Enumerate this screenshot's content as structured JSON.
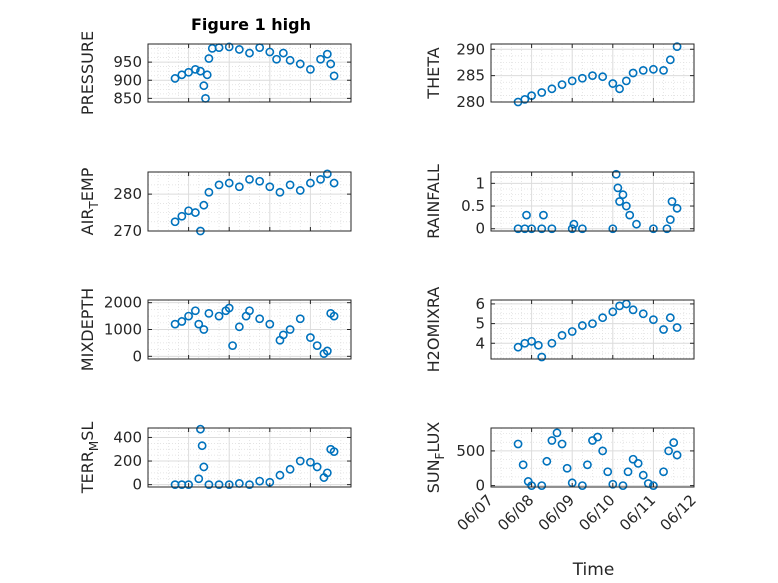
{
  "figure": {
    "title": "Figure 1 high"
  },
  "chart_data": [
    {
      "type": "scatter",
      "ylabel": "PRESSURE",
      "ylim": [
        840,
        1000
      ],
      "yticks": [
        "850",
        "900",
        "950"
      ],
      "x": [
        "06/07 16:00",
        "06/07 20:00",
        "06/08 00:00",
        "06/08 04:00",
        "06/08 07:00",
        "06/08 09:00",
        "06/08 10:00",
        "06/08 11:00",
        "06/08 12:00",
        "06/08 14:00",
        "06/08 18:00",
        "06/09 00:00",
        "06/09 06:00",
        "06/09 12:00",
        "06/09 18:00",
        "06/10 00:00",
        "06/10 04:00",
        "06/10 08:00",
        "06/10 12:00",
        "06/10 18:00",
        "06/11 00:00",
        "06/11 06:00",
        "06/11 10:00",
        "06/11 12:00",
        "06/11 14:00"
      ],
      "y": [
        905,
        915,
        922,
        930,
        925,
        885,
        850,
        915,
        960,
        988,
        990,
        992,
        985,
        975,
        990,
        978,
        958,
        975,
        955,
        945,
        930,
        958,
        972,
        945,
        912
      ]
    },
    {
      "type": "scatter",
      "ylabel": "THETA",
      "ylim": [
        280,
        291
      ],
      "yticks": [
        "280",
        "285",
        "290"
      ],
      "x": [
        "06/07 16:00",
        "06/07 20:00",
        "06/08 00:00",
        "06/08 06:00",
        "06/08 12:00",
        "06/08 18:00",
        "06/09 00:00",
        "06/09 06:00",
        "06/09 12:00",
        "06/09 18:00",
        "06/10 00:00",
        "06/10 04:00",
        "06/10 08:00",
        "06/10 12:00",
        "06/10 18:00",
        "06/11 00:00",
        "06/11 06:00",
        "06/11 10:00",
        "06/11 14:00"
      ],
      "y": [
        280.0,
        280.5,
        281.2,
        281.8,
        282.5,
        283.3,
        284.0,
        284.5,
        285.0,
        284.8,
        283.5,
        282.5,
        284.0,
        285.5,
        286.0,
        286.2,
        286.0,
        288.0,
        290.5
      ]
    },
    {
      "type": "scatter",
      "ylabel": "AIR_TEMP",
      "ylim": [
        270,
        286
      ],
      "yticks": [
        "270",
        "280"
      ],
      "x": [
        "06/07 16:00",
        "06/07 20:00",
        "06/08 00:00",
        "06/08 04:00",
        "06/08 07:00",
        "06/08 09:00",
        "06/08 12:00",
        "06/08 18:00",
        "06/09 00:00",
        "06/09 06:00",
        "06/09 12:00",
        "06/09 18:00",
        "06/10 00:00",
        "06/10 06:00",
        "06/10 12:00",
        "06/10 18:00",
        "06/11 00:00",
        "06/11 06:00",
        "06/11 10:00",
        "06/11 14:00"
      ],
      "y": [
        272.5,
        274.0,
        275.5,
        275.0,
        270.0,
        277.0,
        280.5,
        282.5,
        283.0,
        282.0,
        284.0,
        283.5,
        282.0,
        280.5,
        282.5,
        281.0,
        283.0,
        284.0,
        285.5,
        283.0
      ]
    },
    {
      "type": "scatter",
      "ylabel": "RAINFALL",
      "ylim": [
        -0.05,
        1.25
      ],
      "yticks": [
        "0",
        "0.5",
        "1"
      ],
      "x": [
        "06/07 16:00",
        "06/07 20:00",
        "06/07 21:00",
        "06/08 00:00",
        "06/08 06:00",
        "06/08 07:00",
        "06/08 12:00",
        "06/09 00:00",
        "06/09 01:00",
        "06/09 06:00",
        "06/10 00:00",
        "06/10 02:00",
        "06/10 03:00",
        "06/10 04:00",
        "06/10 06:00",
        "06/10 08:00",
        "06/10 10:00",
        "06/10 14:00",
        "06/11 00:00",
        "06/11 08:00",
        "06/11 10:00",
        "06/11 11:00",
        "06/11 14:00"
      ],
      "y": [
        0,
        0,
        0.3,
        0,
        0,
        0.3,
        0,
        0,
        0.1,
        0,
        0,
        1.2,
        0.9,
        0.6,
        0.75,
        0.5,
        0.3,
        0.1,
        0,
        0,
        0.2,
        0.6,
        0.45
      ]
    },
    {
      "type": "scatter",
      "ylabel": "MIXDEPTH",
      "ylim": [
        -100,
        2100
      ],
      "yticks": [
        "0",
        "1000",
        "2000"
      ],
      "x": [
        "06/07 16:00",
        "06/07 20:00",
        "06/08 00:00",
        "06/08 04:00",
        "06/08 06:00",
        "06/08 09:00",
        "06/08 12:00",
        "06/08 18:00",
        "06/08 22:00",
        "06/09 00:00",
        "06/09 02:00",
        "06/09 06:00",
        "06/09 10:00",
        "06/09 12:00",
        "06/09 18:00",
        "06/10 00:00",
        "06/10 06:00",
        "06/10 08:00",
        "06/10 12:00",
        "06/10 18:00",
        "06/11 00:00",
        "06/11 04:00",
        "06/11 08:00",
        "06/11 10:00",
        "06/11 12:00",
        "06/11 14:00"
      ],
      "y": [
        1200,
        1300,
        1500,
        1700,
        1200,
        1000,
        1600,
        1500,
        1700,
        1800,
        400,
        1100,
        1500,
        1700,
        1400,
        1200,
        600,
        800,
        1000,
        1400,
        700,
        400,
        100,
        200,
        1600,
        1500
      ]
    },
    {
      "type": "scatter",
      "ylabel": "H2OMIXRA",
      "ylim": [
        3.2,
        6.2
      ],
      "yticks": [
        "4",
        "5",
        "6"
      ],
      "x": [
        "06/07 16:00",
        "06/07 20:00",
        "06/08 00:00",
        "06/08 04:00",
        "06/08 06:00",
        "06/08 12:00",
        "06/08 18:00",
        "06/09 00:00",
        "06/09 06:00",
        "06/09 12:00",
        "06/09 18:00",
        "06/10 00:00",
        "06/10 04:00",
        "06/10 08:00",
        "06/10 12:00",
        "06/10 18:00",
        "06/11 00:00",
        "06/11 06:00",
        "06/11 10:00",
        "06/11 14:00"
      ],
      "y": [
        3.8,
        4.0,
        4.1,
        3.9,
        3.3,
        4.0,
        4.4,
        4.6,
        4.9,
        5.0,
        5.3,
        5.6,
        5.9,
        6.0,
        5.7,
        5.5,
        5.2,
        4.7,
        5.3,
        4.8
      ]
    },
    {
      "type": "scatter",
      "ylabel": "TERR_MSL",
      "ylim": [
        -20,
        480
      ],
      "yticks": [
        "0",
        "200",
        "400"
      ],
      "x": [
        "06/07 16:00",
        "06/07 20:00",
        "06/08 00:00",
        "06/08 06:00",
        "06/08 07:00",
        "06/08 08:00",
        "06/08 09:00",
        "06/08 12:00",
        "06/08 18:00",
        "06/09 00:00",
        "06/09 06:00",
        "06/09 12:00",
        "06/09 18:00",
        "06/10 00:00",
        "06/10 06:00",
        "06/10 12:00",
        "06/10 18:00",
        "06/11 00:00",
        "06/11 04:00",
        "06/11 08:00",
        "06/11 10:00",
        "06/11 12:00",
        "06/11 14:00"
      ],
      "y": [
        0,
        0,
        0,
        50,
        470,
        330,
        150,
        0,
        0,
        0,
        10,
        0,
        30,
        20,
        80,
        130,
        200,
        190,
        150,
        60,
        100,
        300,
        280
      ]
    },
    {
      "type": "scatter",
      "ylabel": "SUN_FLUX",
      "ylim": [
        -20,
        830
      ],
      "yticks": [
        "0",
        "500"
      ],
      "xlabel": "Time",
      "x": [
        "06/07 16:00",
        "06/07 19:00",
        "06/07 22:00",
        "06/08 00:00",
        "06/08 06:00",
        "06/08 09:00",
        "06/08 12:00",
        "06/08 15:00",
        "06/08 18:00",
        "06/08 21:00",
        "06/09 00:00",
        "06/09 06:00",
        "06/09 09:00",
        "06/09 12:00",
        "06/09 15:00",
        "06/09 18:00",
        "06/09 21:00",
        "06/10 00:00",
        "06/10 06:00",
        "06/10 09:00",
        "06/10 12:00",
        "06/10 15:00",
        "06/10 18:00",
        "06/10 21:00",
        "06/11 00:00",
        "06/11 06:00",
        "06/11 09:00",
        "06/11 12:00",
        "06/11 14:00"
      ],
      "y": [
        600,
        300,
        60,
        0,
        0,
        350,
        650,
        760,
        600,
        250,
        40,
        0,
        300,
        650,
        700,
        500,
        200,
        20,
        0,
        200,
        380,
        320,
        150,
        30,
        0,
        200,
        500,
        620,
        440
      ]
    }
  ],
  "x_axis": {
    "start": "06/07",
    "end": "06/12",
    "ticks": [
      "06/07",
      "06/08",
      "06/09",
      "06/10",
      "06/11",
      "06/12"
    ],
    "xlabel": "Time"
  },
  "colors": {
    "marker": "#0072BD",
    "grid": "#dcdcdc",
    "axis": "#262626"
  }
}
